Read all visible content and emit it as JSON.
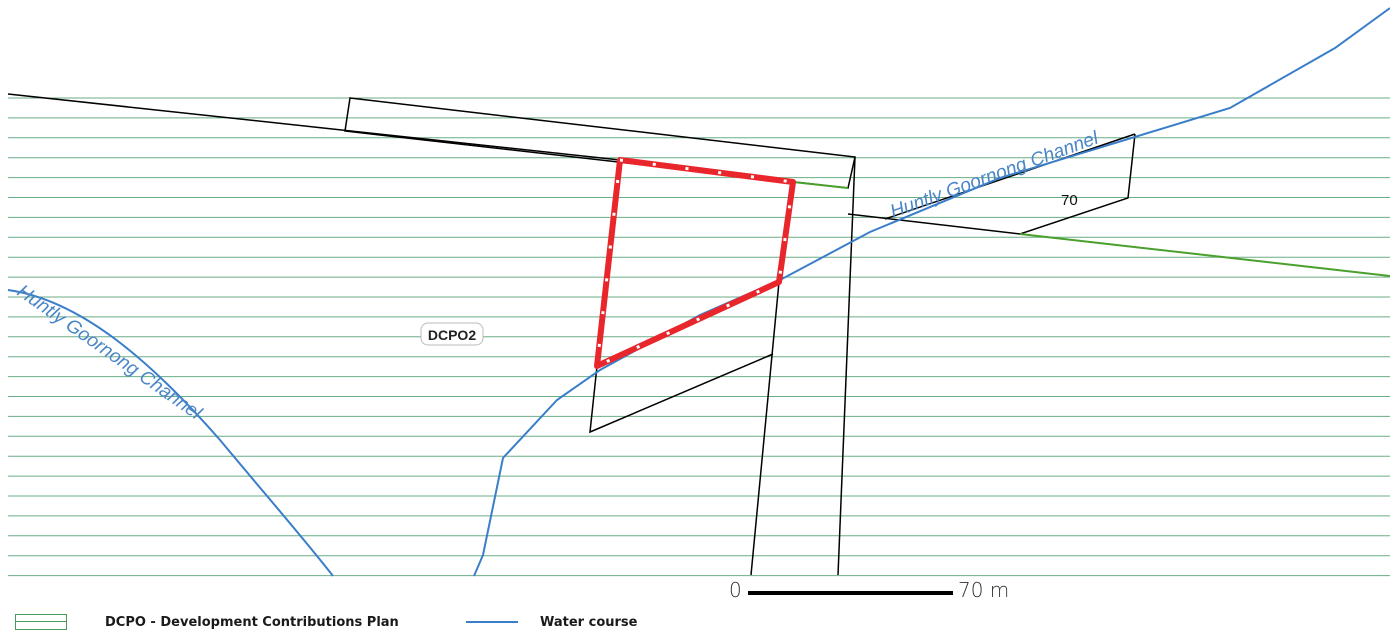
{
  "map": {
    "zone_label": "DCPO2",
    "lot_number": "70",
    "channel_labels": [
      "Huntly Goornong Channel",
      "Huntly Goornong Channel"
    ]
  },
  "scale_bar": {
    "start": "0",
    "end": "70 m"
  },
  "legend": [
    {
      "label": "DCPO - Development Contributions Plan",
      "icon": "hatched-green-box"
    },
    {
      "label": "Water course",
      "icon": "blue-line"
    }
  ],
  "colors": {
    "hatch": "#5fa877",
    "boundary": "#000000",
    "subject_site": "#e8262b",
    "water": "#3a7ec9",
    "green_boundary": "#4aa02c"
  }
}
